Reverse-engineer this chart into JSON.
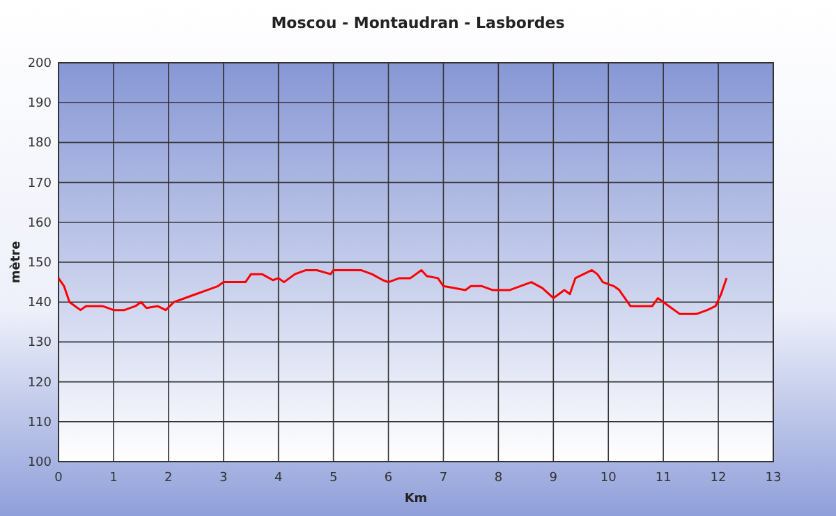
{
  "chart_data": {
    "type": "line",
    "title": "Moscou - Montaudran - Lasbordes",
    "xlabel": "Km",
    "ylabel": "mètre",
    "grid": true,
    "marker": "none",
    "line_style": "solid",
    "xlim": [
      0,
      13
    ],
    "xticks": [
      0,
      1,
      2,
      3,
      4,
      5,
      6,
      7,
      8,
      9,
      10,
      11,
      12,
      13
    ],
    "ylim": [
      100,
      200
    ],
    "yticks": [
      100,
      110,
      120,
      130,
      140,
      150,
      160,
      170,
      180,
      190,
      200
    ],
    "series": [
      {
        "color": "#ff0000",
        "x": [
          0,
          0.1,
          0.2,
          0.3,
          0.4,
          0.5,
          0.6,
          0.8,
          1.0,
          1.2,
          1.4,
          1.5,
          1.6,
          1.8,
          1.95,
          2.1,
          2.3,
          2.5,
          2.7,
          2.9,
          3.0,
          3.4,
          3.5,
          3.7,
          3.9,
          4.0,
          4.1,
          4.3,
          4.5,
          4.7,
          4.95,
          5.0,
          5.5,
          5.7,
          5.9,
          6.0,
          6.2,
          6.4,
          6.6,
          6.7,
          6.9,
          7.0,
          7.4,
          7.5,
          7.7,
          7.9,
          8.2,
          8.4,
          8.6,
          8.8,
          9.0,
          9.2,
          9.3,
          9.4,
          9.7,
          9.8,
          9.9,
          10.1,
          10.2,
          10.4,
          10.8,
          10.9,
          11.1,
          11.3,
          11.6,
          11.8,
          11.95,
          12.05,
          12.1,
          12.15
        ],
        "values": [
          146,
          144,
          140,
          139,
          138,
          139,
          139,
          139,
          138,
          138,
          139,
          140,
          138.5,
          139,
          138,
          140,
          141,
          142,
          143,
          144,
          145,
          145,
          147,
          147,
          145.5,
          146,
          145,
          147,
          148,
          148,
          147,
          148,
          148,
          147,
          145.5,
          145,
          146,
          146,
          148,
          146.5,
          146,
          144,
          143,
          144,
          144,
          143,
          143,
          144,
          145,
          143.5,
          141,
          143,
          142,
          146,
          148,
          147,
          145,
          144,
          143,
          139,
          139,
          141,
          139,
          137,
          137,
          138,
          139,
          142,
          144,
          146
        ]
      }
    ]
  }
}
